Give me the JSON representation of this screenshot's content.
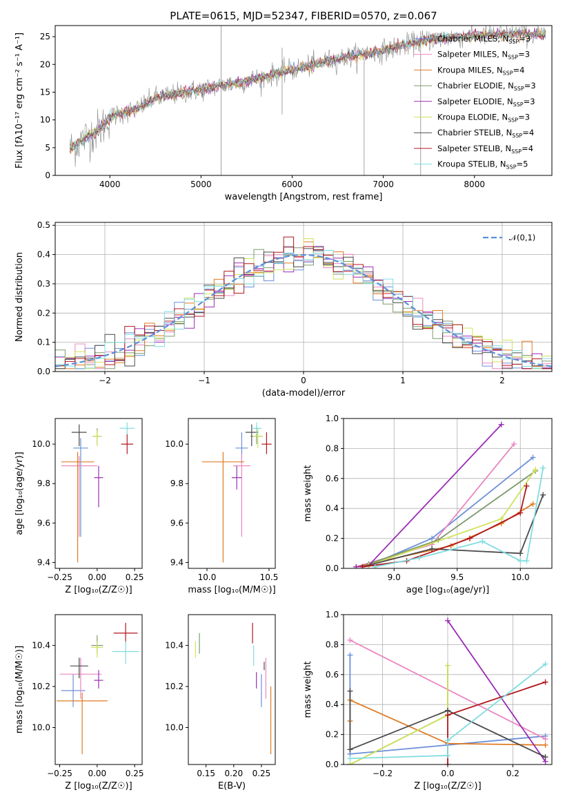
{
  "palette": [
    "#6a8fd8",
    "#e986c0",
    "#e07a22",
    "#7d9a6a",
    "#9b2cb4",
    "#cfe25a",
    "#4a4a4a",
    "#b0161c",
    "#7fdce0"
  ],
  "chart_data": [
    {
      "id": "spectrum",
      "type": "line",
      "title": "PLATE=0615, MJD=52347, FIBERID=0570, z=0.067",
      "xlabel": "wavelength [Angstrom, rest frame]",
      "ylabel": "Flux [fλ10⁻¹⁷ erg cm⁻² s⁻¹ A⁻¹]",
      "xlim": [
        3400,
        8850
      ],
      "ylim": [
        0,
        27
      ],
      "xticks": [
        4000,
        5000,
        6000,
        7000,
        8000
      ],
      "yticks": [
        0,
        5,
        10,
        15,
        20,
        25
      ],
      "legend": "top-right",
      "series": [
        {
          "name": "Chabrier MILES, NSSP=3"
        },
        {
          "name": "Salpeter MILES, NSSP=3"
        },
        {
          "name": "Kroupa MILES, NSSP=4"
        },
        {
          "name": "Chabrier ELODIE, NSSP=3"
        },
        {
          "name": "Salpeter ELODIE, NSSP=3"
        },
        {
          "name": "Kroupa ELODIE, NSSP=3"
        },
        {
          "name": "Chabrier STELIB, NSSP=4"
        },
        {
          "name": "Salpeter STELIB, NSSP=4"
        },
        {
          "name": "Kroupa STELIB, NSSP=5"
        }
      ],
      "continuum": {
        "x": [
          3550,
          3700,
          3900,
          4000,
          4300,
          4500,
          5000,
          5500,
          6000,
          6500,
          7000,
          7500,
          8000,
          8500,
          8800
        ],
        "y": [
          4.5,
          6.5,
          8.5,
          10.5,
          12.0,
          14.0,
          15.5,
          17.0,
          19.0,
          21.0,
          22.5,
          24.5,
          25.2,
          25.5,
          25.3
        ]
      }
    },
    {
      "id": "residuals",
      "type": "histogram",
      "xlabel": "(data-model)/error",
      "ylabel": "Normed distribution",
      "xlim": [
        -2.5,
        2.5
      ],
      "ylim": [
        0,
        0.51
      ],
      "xticks": [
        -2,
        -1,
        0,
        1,
        2
      ],
      "yticks": [
        0.0,
        0.1,
        0.2,
        0.3,
        0.4,
        0.5
      ],
      "legend": "top-right",
      "reference": "𝒩(0,1)",
      "bin_width": 0.1
    },
    {
      "id": "age-vs-z",
      "type": "errorbar",
      "xlabel": "Z [log₁₀(Z/Z☉)]",
      "ylabel": "age  [log₁₀(age/yr)]",
      "xlim": [
        -0.28,
        0.3
      ],
      "ylim": [
        9.37,
        10.13
      ],
      "xticks": [
        -0.25,
        0.0,
        0.25
      ],
      "yticks": [
        9.4,
        9.6,
        9.8,
        10.0
      ],
      "points": [
        {
          "x": -0.11,
          "y": 9.98,
          "xerr": 0.05,
          "yerr_lo": 0.45,
          "yerr_hi": 0.05
        },
        {
          "x": -0.12,
          "y": 9.89,
          "xerr": 0.12,
          "yerr_lo": 0.36,
          "yerr_hi": 0.05
        },
        {
          "x": -0.13,
          "y": 9.91,
          "xerr": 0.11,
          "yerr_lo": 0.51,
          "yerr_hi": 0.05
        },
        {
          "x": 0.0,
          "y": 10.04,
          "xerr": 0.03,
          "yerr_lo": 0.04,
          "yerr_hi": 0.04
        },
        {
          "x": 0.01,
          "y": 9.83,
          "xerr": 0.03,
          "yerr_lo": 0.15,
          "yerr_hi": 0.06
        },
        {
          "x": 0.0,
          "y": 10.04,
          "xerr": 0.03,
          "yerr_lo": 0.05,
          "yerr_hi": 0.03
        },
        {
          "x": -0.12,
          "y": 10.06,
          "xerr": 0.05,
          "yerr_lo": 0.07,
          "yerr_hi": 0.04
        },
        {
          "x": 0.2,
          "y": 10.0,
          "xerr": 0.04,
          "yerr_lo": 0.05,
          "yerr_hi": 0.05
        },
        {
          "x": 0.2,
          "y": 10.08,
          "xerr": 0.05,
          "yerr_lo": 0.03,
          "yerr_hi": 0.03
        }
      ]
    },
    {
      "id": "age-vs-mass",
      "type": "errorbar",
      "xlabel": "mass [log₁₀(M/M☉)]",
      "ylabel": "",
      "xlim": [
        9.85,
        10.55
      ],
      "ylim": [
        9.37,
        10.13
      ],
      "xticks": [
        10.0,
        10.5
      ],
      "yticks": [
        9.4,
        9.6,
        9.8,
        10.0
      ],
      "points": [
        {
          "x": 10.28,
          "y": 9.98,
          "xerr": 0.05,
          "yerr_lo": 0.08,
          "yerr_hi": 0.08
        },
        {
          "x": 10.28,
          "y": 9.89,
          "xerr": 0.07,
          "yerr_lo": 0.36,
          "yerr_hi": 0.06
        },
        {
          "x": 10.13,
          "y": 9.91,
          "xerr": 0.17,
          "yerr_lo": 0.51,
          "yerr_hi": 0.05
        },
        {
          "x": 10.4,
          "y": 10.04,
          "xerr": 0.05,
          "yerr_lo": 0.04,
          "yerr_hi": 0.05
        },
        {
          "x": 10.24,
          "y": 9.83,
          "xerr": 0.04,
          "yerr_lo": 0.06,
          "yerr_hi": 0.06
        },
        {
          "x": 10.41,
          "y": 10.04,
          "xerr": 0.04,
          "yerr_lo": 0.06,
          "yerr_hi": 0.04
        },
        {
          "x": 10.36,
          "y": 10.06,
          "xerr": 0.05,
          "yerr_lo": 0.07,
          "yerr_hi": 0.04
        },
        {
          "x": 10.48,
          "y": 10.0,
          "xerr": 0.04,
          "yerr_lo": 0.05,
          "yerr_hi": 0.06
        },
        {
          "x": 10.4,
          "y": 10.08,
          "xerr": 0.04,
          "yerr_lo": 0.03,
          "yerr_hi": 0.03
        }
      ]
    },
    {
      "id": "mass-weight-vs-age",
      "type": "line",
      "xlabel": "age  [log₁₀(age/yr)]",
      "ylabel": "mass weight",
      "xlim": [
        8.6,
        10.25
      ],
      "ylim": [
        0,
        1.0
      ],
      "xticks": [
        9.0,
        9.5,
        10.0
      ],
      "yticks": [
        0.0,
        0.2,
        0.4,
        0.6,
        0.8,
        1.0
      ],
      "grid": true,
      "series": [
        {
          "x": [
            8.8,
            9.3,
            10.1
          ],
          "y": [
            0.02,
            0.2,
            0.74
          ]
        },
        {
          "x": [
            8.7,
            9.3,
            9.95
          ],
          "y": [
            0.01,
            0.16,
            0.83
          ]
        },
        {
          "x": [
            8.7,
            9.45,
            9.85,
            10.1
          ],
          "y": [
            0.01,
            0.15,
            0.3,
            0.43
          ]
        },
        {
          "x": [
            8.8,
            9.35,
            10.12
          ],
          "y": [
            0.03,
            0.19,
            0.65
          ]
        },
        {
          "x": [
            8.7,
            8.8,
            9.85
          ],
          "y": [
            0.01,
            0.02,
            0.96
          ]
        },
        {
          "x": [
            8.8,
            9.85,
            10.12
          ],
          "y": [
            0.02,
            0.33,
            0.66
          ]
        },
        {
          "x": [
            8.75,
            9.3,
            10.0,
            10.18
          ],
          "y": [
            0.01,
            0.13,
            0.1,
            0.49
          ]
        },
        {
          "x": [
            8.75,
            9.1,
            9.6,
            10.0,
            10.05
          ],
          "y": [
            0.01,
            0.05,
            0.2,
            0.37,
            0.55
          ]
        },
        {
          "x": [
            8.85,
            9.2,
            9.7,
            10.0,
            10.05,
            10.18
          ],
          "y": [
            0.01,
            0.07,
            0.18,
            0.05,
            0.05,
            0.67
          ]
        }
      ]
    },
    {
      "id": "mass-vs-z",
      "type": "errorbar",
      "xlabel": "Z [log₁₀(Z/Z☉)]",
      "ylabel": "mass [log₁₀(M/M☉)]",
      "xlim": [
        -0.28,
        0.3
      ],
      "ylim": [
        9.82,
        10.55
      ],
      "xticks": [
        -0.25,
        0.0,
        0.25
      ],
      "yticks": [
        10.0,
        10.2,
        10.4
      ],
      "points": [
        {
          "x": -0.16,
          "y": 10.18,
          "xerr": 0.08,
          "yerr_lo": 0.08,
          "yerr_hi": 0.08
        },
        {
          "x": -0.11,
          "y": 10.26,
          "xerr": 0.14,
          "yerr_lo": 0.12,
          "yerr_hi": 0.08
        },
        {
          "x": -0.1,
          "y": 10.13,
          "xerr": 0.17,
          "yerr_lo": 0.26,
          "yerr_hi": 0.04
        },
        {
          "x": 0.0,
          "y": 10.4,
          "xerr": 0.04,
          "yerr_lo": 0.04,
          "yerr_hi": 0.05
        },
        {
          "x": 0.01,
          "y": 10.23,
          "xerr": 0.03,
          "yerr_lo": 0.04,
          "yerr_hi": 0.05
        },
        {
          "x": 0.0,
          "y": 10.39,
          "xerr": 0.04,
          "yerr_lo": 0.05,
          "yerr_hi": 0.03
        },
        {
          "x": -0.12,
          "y": 10.3,
          "xerr": 0.06,
          "yerr_lo": 0.06,
          "yerr_hi": 0.04
        },
        {
          "x": 0.19,
          "y": 10.46,
          "xerr": 0.08,
          "yerr_lo": 0.05,
          "yerr_hi": 0.05
        },
        {
          "x": 0.19,
          "y": 10.37,
          "xerr": 0.09,
          "yerr_lo": 0.06,
          "yerr_hi": 0.05
        }
      ]
    },
    {
      "id": "mass-vs-ebv",
      "type": "errorbar",
      "xlabel": "E(B-V)",
      "ylabel": "",
      "xlim": [
        0.118,
        0.275
      ],
      "ylim": [
        9.82,
        10.55
      ],
      "xticks": [
        0.15,
        0.2,
        0.25
      ],
      "yticks": [
        10.0,
        10.2,
        10.4
      ],
      "points": [
        {
          "x": 0.25,
          "y": 10.18,
          "xerr": 0.0,
          "yerr_lo": 0.08,
          "yerr_hi": 0.08
        },
        {
          "x": 0.258,
          "y": 10.26,
          "xerr": 0.0,
          "yerr_lo": 0.12,
          "yerr_hi": 0.08
        },
        {
          "x": 0.267,
          "y": 10.13,
          "xerr": 0.0,
          "yerr_lo": 0.26,
          "yerr_hi": 0.07
        },
        {
          "x": 0.138,
          "y": 10.4,
          "xerr": 0.0,
          "yerr_lo": 0.04,
          "yerr_hi": 0.06
        },
        {
          "x": 0.241,
          "y": 10.23,
          "xerr": 0.0,
          "yerr_lo": 0.04,
          "yerr_hi": 0.04
        },
        {
          "x": 0.131,
          "y": 10.39,
          "xerr": 0.0,
          "yerr_lo": 0.05,
          "yerr_hi": 0.03
        },
        {
          "x": 0.255,
          "y": 10.3,
          "xerr": 0.0,
          "yerr_lo": 0.02,
          "yerr_hi": 0.02
        },
        {
          "x": 0.234,
          "y": 10.46,
          "xerr": 0.0,
          "yerr_lo": 0.05,
          "yerr_hi": 0.05
        },
        {
          "x": 0.236,
          "y": 10.37,
          "xerr": 0.0,
          "yerr_lo": 0.07,
          "yerr_hi": 0.03
        }
      ]
    },
    {
      "id": "mass-weight-vs-z",
      "type": "line",
      "xlabel": "Z [log₁₀(Z/Z☉)]",
      "ylabel": "mass weight",
      "xlim": [
        -0.32,
        0.32
      ],
      "ylim": [
        0,
        1.0
      ],
      "xticks": [
        -0.2,
        0.0,
        0.2
      ],
      "yticks": [
        0.0,
        0.2,
        0.4,
        0.6,
        0.8,
        1.0
      ],
      "grid": true,
      "series": [
        {
          "x": [
            -0.3,
            -0.3,
            0.3
          ],
          "y": [
            0.73,
            0.07,
            0.19
          ]
        },
        {
          "x": [
            -0.3,
            0.3
          ],
          "y": [
            0.83,
            0.17
          ]
        },
        {
          "x": [
            -0.3,
            -0.3,
            0.0,
            0.3
          ],
          "y": [
            0.29,
            0.43,
            0.14,
            0.13
          ]
        },
        {
          "x": [
            -0.3,
            0.0,
            0.0
          ],
          "y": [
            0.0,
            0.33,
            0.66
          ]
        },
        {
          "x": [
            0.0,
            0.3
          ],
          "y": [
            0.96,
            0.02
          ]
        },
        {
          "x": [
            -0.3,
            0.0,
            0.0
          ],
          "y": [
            0.0,
            0.33,
            0.66
          ]
        },
        {
          "x": [
            -0.3,
            -0.3,
            0.0,
            0.3
          ],
          "y": [
            0.49,
            0.1,
            0.36,
            0.05
          ]
        },
        {
          "x": [
            0.0,
            0.0,
            0.3
          ],
          "y": [
            0.0,
            0.33,
            0.55
          ]
        },
        {
          "x": [
            -0.3,
            0.0,
            0.0,
            0.3
          ],
          "y": [
            0.04,
            0.06,
            0.16,
            0.67
          ]
        }
      ]
    }
  ]
}
